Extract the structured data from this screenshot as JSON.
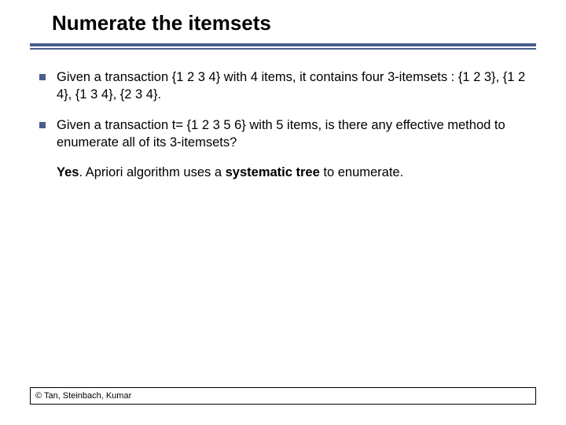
{
  "title": "Numerate the itemsets",
  "bullets": [
    {
      "text": "Given a transaction {1 2 3 4} with 4 items, it contains four 3-itemsets : {1 2 3}, {1 2 4}, {1 3 4}, {2 3 4}."
    },
    {
      "text": "Given a transaction t= {1 2 3 5 6} with 5 items, is there any effective method to enumerate all of its 3-itemsets?"
    }
  ],
  "answer": {
    "prefix_bold": "Yes",
    "middle": ". Apriori algorithm uses a ",
    "inner_bold": "systematic tree",
    "suffix": " to enumerate."
  },
  "footer": "© Tan, Steinbach, Kumar",
  "colors": {
    "accent": "#4a5e8f",
    "text": "#000000",
    "background": "#ffffff"
  }
}
